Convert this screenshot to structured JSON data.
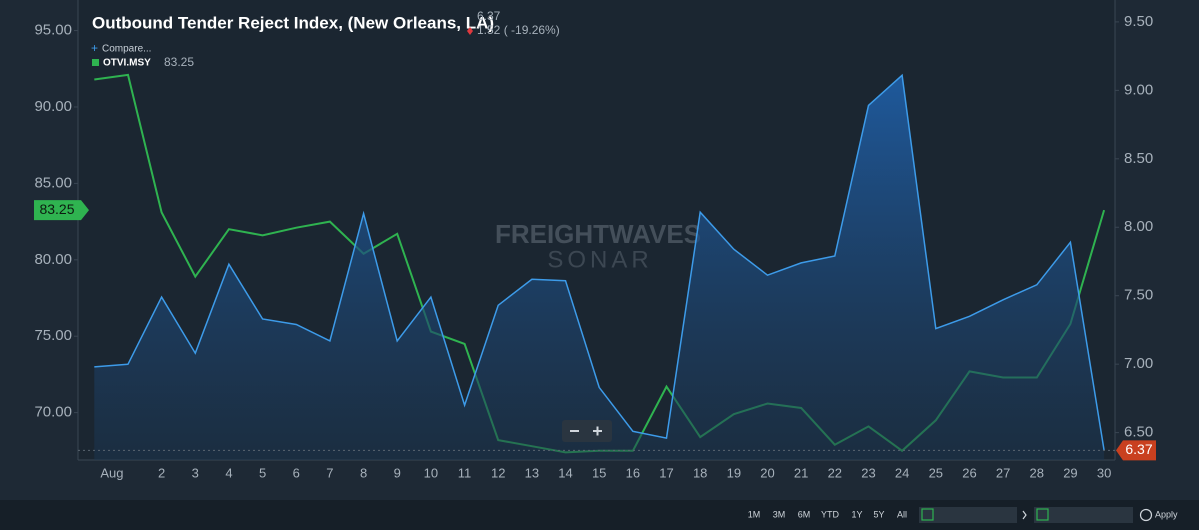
{
  "chart_data": {
    "type": "line",
    "title": "Outbound Tender Reject Index, (New Orleans, LA)",
    "header_value": "6.37",
    "header_change": "1.52 ( -19.26%)",
    "compare": "Compare...",
    "categories": [
      null,
      "Aug",
      "2",
      "3",
      "4",
      "5",
      "6",
      "7",
      "8",
      "9",
      "10",
      "11",
      "12",
      "13",
      "14",
      "15",
      "16",
      "17",
      "18",
      "19",
      "20",
      "21",
      "22",
      "23",
      "24",
      "25",
      "26",
      "27",
      "28",
      "29",
      "30"
    ],
    "series": [
      {
        "name": "OTVI.MSY",
        "color": "#2fb350",
        "axis": "y",
        "values": [
          91.8,
          92.1,
          83.1,
          78.9,
          82.0,
          81.6,
          82.1,
          82.5,
          80.4,
          81.7,
          75.3,
          74.5,
          68.2,
          67.8,
          67.4,
          67.5,
          67.5,
          71.7,
          68.4,
          69.9,
          70.6,
          70.3,
          67.9,
          69.1,
          67.5,
          69.5,
          72.7,
          72.3,
          72.3,
          75.8,
          83.25
        ]
      },
      {
        "color": "#3d9be9",
        "axis": "y2",
        "area": true,
        "values": [
          6.98,
          7.0,
          7.49,
          7.08,
          7.73,
          7.33,
          7.29,
          7.17,
          8.1,
          7.17,
          7.49,
          6.7,
          7.43,
          7.62,
          7.61,
          6.83,
          6.51,
          6.46,
          8.11,
          7.84,
          7.65,
          7.74,
          7.79,
          8.89,
          9.11,
          7.26,
          7.35,
          7.47,
          7.58,
          7.89,
          6.37
        ]
      }
    ],
    "ylim": [
      66.9,
      97
    ],
    "yticks": [
      {
        "value": 70,
        "label": "70.00"
      },
      {
        "value": 75,
        "label": "75.00"
      },
      {
        "value": 80,
        "label": "80.00"
      },
      {
        "value": 85,
        "label": "85.00"
      },
      {
        "value": 90,
        "label": "90.00"
      },
      {
        "value": 95,
        "label": "95.00"
      }
    ],
    "y2lim": [
      6.3,
      9.66
    ],
    "y2ticks": [
      {
        "value": 6.5,
        "label": "6.50"
      },
      {
        "value": 7,
        "label": "7.00"
      },
      {
        "value": 7.5,
        "label": "7.50"
      },
      {
        "value": 8,
        "label": "8.00"
      },
      {
        "value": 8.5,
        "label": "8.50"
      },
      {
        "value": 9,
        "label": "9.00"
      },
      {
        "value": 9.5,
        "label": "9.50"
      }
    ],
    "watermark": [
      "FREIGHTWAVES",
      "SONAR"
    ],
    "ranges": [
      "1M",
      "3M",
      "6M",
      "YTD",
      "1Y",
      "5Y",
      "All"
    ],
    "apply": "Apply"
  }
}
